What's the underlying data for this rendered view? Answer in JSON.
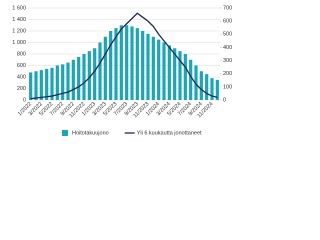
{
  "chart_data": {
    "type": "bar_line",
    "categories": [
      "1/2022",
      null,
      "3/2022",
      null,
      "5/2022",
      null,
      "7/2022",
      null,
      "9/2022",
      null,
      "11/2022",
      null,
      "1/2023",
      null,
      "3/2023",
      null,
      "5/2023",
      null,
      "7/2023",
      null,
      "9/2023",
      null,
      "11/2023",
      null,
      "1/2024",
      null,
      "3/2024",
      null,
      "5/2024",
      null,
      "7/2024",
      null,
      "9/2024",
      null,
      "11/2024",
      null
    ],
    "series": [
      {
        "name": "Hoitotakuujono",
        "color": "#1aa6b7",
        "type": "bar",
        "values": [
          480,
          500,
          520,
          540,
          560,
          600,
          620,
          650,
          700,
          750,
          800,
          850,
          900,
          1000,
          1100,
          1200,
          1250,
          1300,
          1300,
          1280,
          1250,
          1200,
          1150,
          1100,
          1050,
          1000,
          950,
          900,
          850,
          800,
          700,
          600,
          500,
          450,
          380,
          350
        ]
      },
      {
        "name": "Yli 6 kuukautta jonottaneet",
        "color": "#1b2a5c",
        "type": "line",
        "axis": "y2",
        "values": [
          10,
          15,
          20,
          25,
          30,
          40,
          50,
          60,
          80,
          100,
          130,
          170,
          220,
          280,
          350,
          420,
          480,
          540,
          580,
          620,
          660,
          630,
          600,
          560,
          500,
          450,
          400,
          350,
          300,
          250,
          180,
          120,
          80,
          50,
          30,
          20
        ]
      }
    ],
    "ylim": [
      0,
      1600
    ],
    "yticks": [
      0,
      200,
      400,
      600,
      800,
      {
        "value": 1000,
        "label": "1 000"
      },
      {
        "value": 1200,
        "label": "1 200"
      },
      {
        "value": 1400,
        "label": "1 400"
      },
      {
        "value": 1600,
        "label": "1 600"
      }
    ],
    "y2lim": [
      0,
      700
    ],
    "y2ticks": [
      0,
      100,
      200,
      300,
      400,
      500,
      600,
      700
    ],
    "grid": true,
    "legend": "bottom"
  }
}
